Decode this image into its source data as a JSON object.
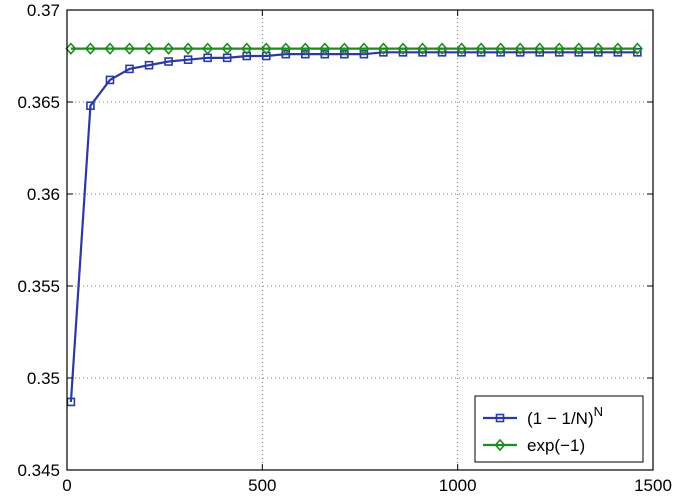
{
  "chart_data": {
    "type": "line",
    "title": "",
    "xlabel": "",
    "ylabel": "",
    "xlim": [
      0,
      1500
    ],
    "ylim": [
      0.345,
      0.37
    ],
    "x_ticks": [
      0,
      500,
      1000,
      1500
    ],
    "y_ticks": [
      0.345,
      0.35,
      0.355,
      0.36,
      0.365,
      0.37
    ],
    "x_tick_labels": [
      "0",
      "500",
      "1000",
      "1500"
    ],
    "y_tick_labels": [
      "0.345",
      "0.35",
      "0.355",
      "0.36",
      "0.365",
      "0.37"
    ],
    "grid": true,
    "legend_position": "bottom-right",
    "x": [
      10,
      60,
      110,
      160,
      210,
      260,
      310,
      360,
      410,
      460,
      510,
      560,
      610,
      660,
      710,
      760,
      810,
      860,
      910,
      960,
      1010,
      1060,
      1110,
      1160,
      1210,
      1260,
      1310,
      1360,
      1410,
      1460
    ],
    "series": [
      {
        "name_base": "(1 − 1/N)",
        "name_sup": "N",
        "color": "#2b3a9e",
        "marker": "square",
        "values": [
          0.3487,
          0.3648,
          0.3662,
          0.3668,
          0.367,
          0.3672,
          0.3673,
          0.3674,
          0.3674,
          0.3675,
          0.3675,
          0.3676,
          0.3676,
          0.3676,
          0.3676,
          0.3676,
          0.3677,
          0.3677,
          0.3677,
          0.3677,
          0.3677,
          0.3677,
          0.3677,
          0.3677,
          0.3677,
          0.3677,
          0.3677,
          0.3677,
          0.3677,
          0.3677
        ]
      },
      {
        "name": "exp(−1)",
        "color": "#1c8c1c",
        "marker": "diamond",
        "values": [
          0.3679,
          0.3679,
          0.3679,
          0.3679,
          0.3679,
          0.3679,
          0.3679,
          0.3679,
          0.3679,
          0.3679,
          0.3679,
          0.3679,
          0.3679,
          0.3679,
          0.3679,
          0.3679,
          0.3679,
          0.3679,
          0.3679,
          0.3679,
          0.3679,
          0.3679,
          0.3679,
          0.3679,
          0.3679,
          0.3679,
          0.3679,
          0.3679,
          0.3679,
          0.3679
        ]
      }
    ]
  }
}
